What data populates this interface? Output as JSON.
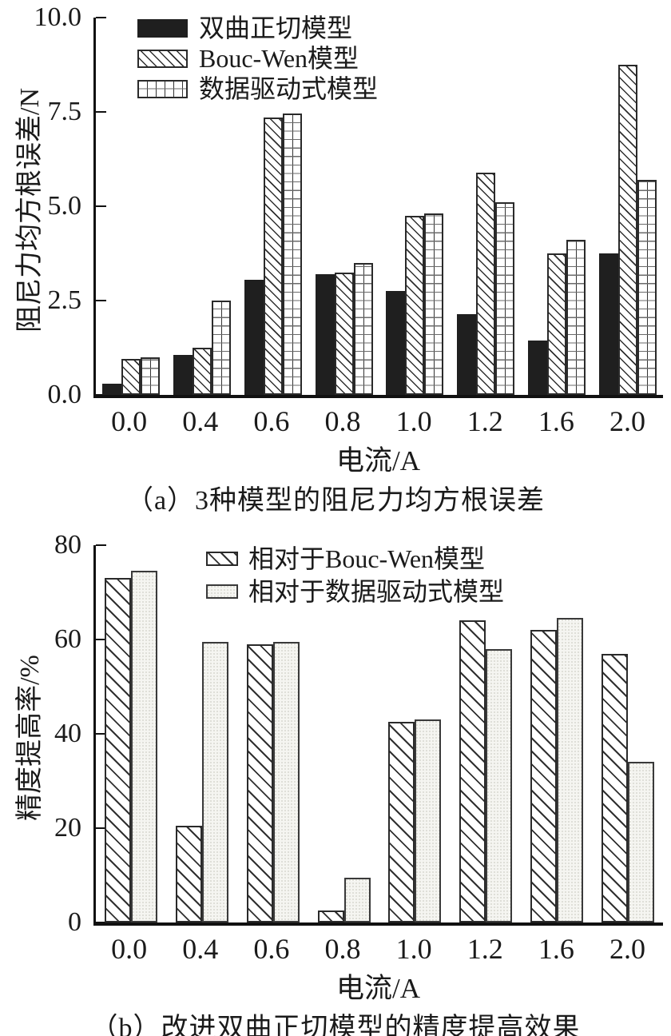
{
  "figure": {
    "background": "#ffffff",
    "ink_color": "#1a1a1a"
  },
  "chart_data": [
    {
      "type": "bar",
      "title": "（a）3种模型的阻尼力均方根误差",
      "xlabel": "电流/A",
      "ylabel": "阻尼力均方根误差/N",
      "ylim": [
        0,
        10.0
      ],
      "yticks": [
        0,
        2.5,
        5.0,
        7.5,
        10.0
      ],
      "ytick_labels": [
        "0.0",
        "2.5",
        "5.0",
        "7.5",
        "10.0"
      ],
      "categories": [
        "0.0",
        "0.4",
        "0.6",
        "0.8",
        "1.0",
        "1.2",
        "1.6",
        "2.0"
      ],
      "grid": false,
      "legend_position": "top-left-inside",
      "series": [
        {
          "name": "双曲正切模型",
          "style": "solid-black",
          "values": [
            0.3,
            1.05,
            3.05,
            3.2,
            2.75,
            2.15,
            1.45,
            3.75
          ]
        },
        {
          "name": "Bouc-Wen模型",
          "style": "diagonal-hatch",
          "values": [
            0.95,
            1.25,
            7.35,
            3.25,
            4.75,
            5.9,
            3.75,
            8.75
          ]
        },
        {
          "name": "数据驱动式模型",
          "style": "grid-hatch",
          "values": [
            1.0,
            2.5,
            7.45,
            3.5,
            4.8,
            5.1,
            4.1,
            5.7
          ]
        }
      ]
    },
    {
      "type": "bar",
      "title": "（b）改进双曲正切模型的精度提高效果",
      "xlabel": "电流/A",
      "ylabel": "精度提高率/%",
      "ylim": [
        0,
        80
      ],
      "yticks": [
        0,
        20,
        40,
        60,
        80
      ],
      "ytick_labels": [
        "0",
        "20",
        "40",
        "60",
        "80"
      ],
      "categories": [
        "0.0",
        "0.4",
        "0.6",
        "0.8",
        "1.0",
        "1.2",
        "1.6",
        "2.0"
      ],
      "grid": false,
      "legend_position": "top-center-inside",
      "series": [
        {
          "name": "相对于Bouc-Wen模型",
          "style": "diagonal-hatch",
          "values": [
            73,
            20.5,
            59,
            2.5,
            42.5,
            64,
            62,
            57
          ]
        },
        {
          "name": "相对于数据驱动式模型",
          "style": "dotted-light",
          "values": [
            74.5,
            59.5,
            59.5,
            9.5,
            43,
            58,
            64.5,
            34
          ]
        }
      ]
    }
  ]
}
